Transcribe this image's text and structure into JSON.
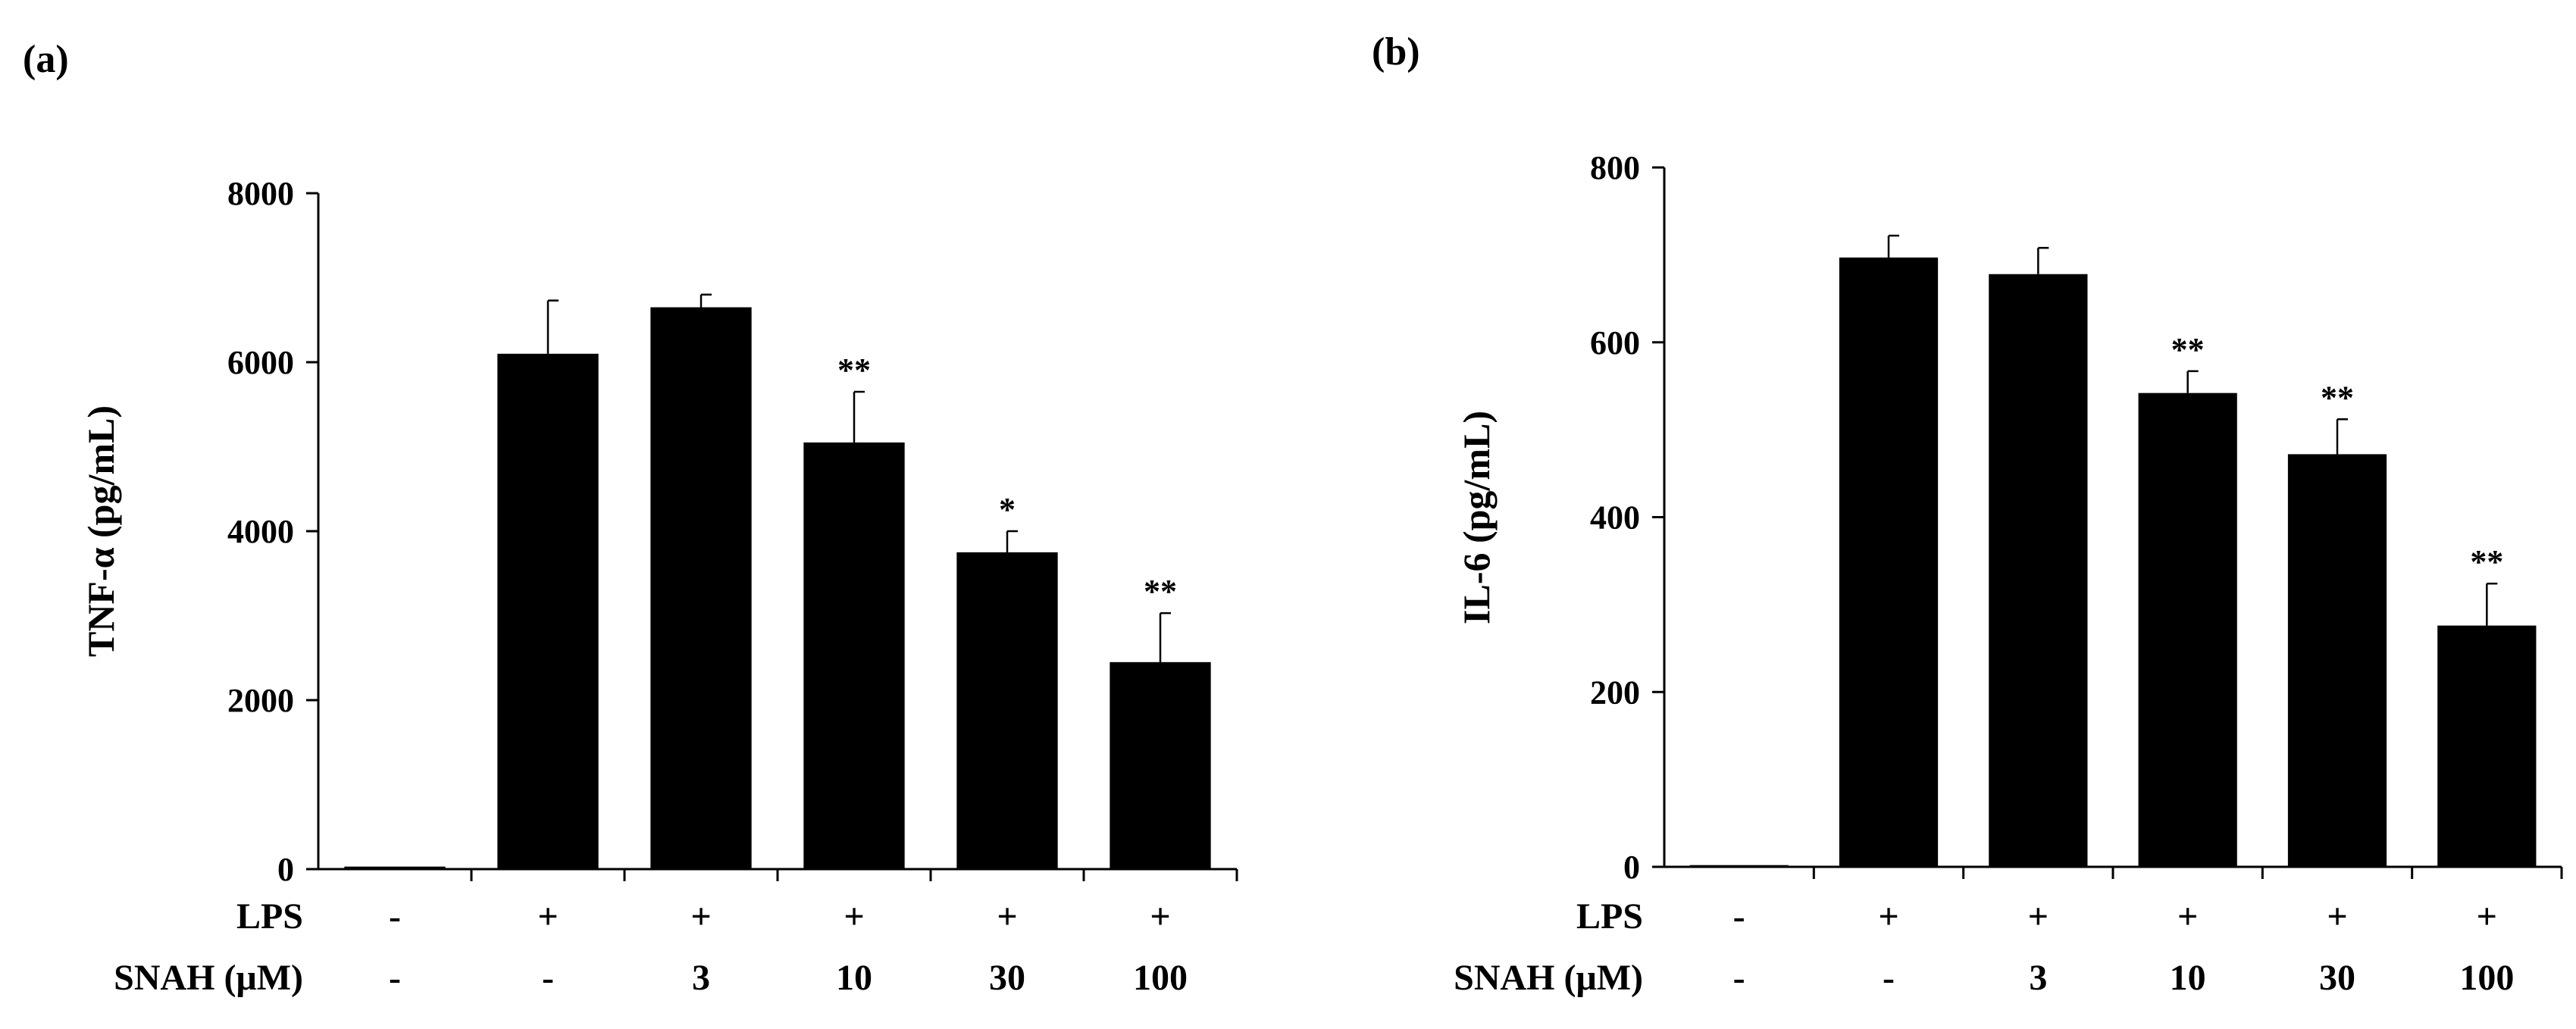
{
  "colors": {
    "bar": "#000000",
    "axis": "#000000",
    "background": "#ffffff"
  },
  "chart_data": [
    {
      "type": "bar",
      "panel_label": "(a)",
      "title": "",
      "xlabel": "",
      "ylabel": "TNF-α (pg/mL)",
      "ylim": [
        0,
        8000
      ],
      "yticks": [
        0,
        2000,
        4000,
        6000,
        8000
      ],
      "grid": false,
      "values": [
        30,
        6100,
        6650,
        5050,
        3750,
        2450
      ],
      "errors": [
        0,
        630,
        150,
        600,
        250,
        580
      ],
      "significance": [
        "",
        "",
        "",
        "**",
        "*",
        "**"
      ],
      "row_labels": [
        "LPS",
        "SNAH (μM)"
      ],
      "rows": [
        [
          "-",
          "+",
          "+",
          "+",
          "+",
          "+"
        ],
        [
          "-",
          "-",
          "3",
          "10",
          "30",
          "100"
        ]
      ]
    },
    {
      "type": "bar",
      "panel_label": "(b)",
      "title": "",
      "xlabel": "",
      "ylabel": "IL-6 (pg/mL)",
      "ylim": [
        0,
        800
      ],
      "yticks": [
        0,
        200,
        400,
        600,
        800
      ],
      "grid": false,
      "values": [
        2,
        697,
        678,
        542,
        472,
        276
      ],
      "errors": [
        0,
        25,
        30,
        25,
        40,
        48
      ],
      "significance": [
        "",
        "",
        "",
        "**",
        "**",
        "**"
      ],
      "row_labels": [
        "LPS",
        "SNAH (μM)"
      ],
      "rows": [
        [
          "-",
          "+",
          "+",
          "+",
          "+",
          "+"
        ],
        [
          "-",
          "-",
          "3",
          "10",
          "30",
          "100"
        ]
      ]
    }
  ]
}
